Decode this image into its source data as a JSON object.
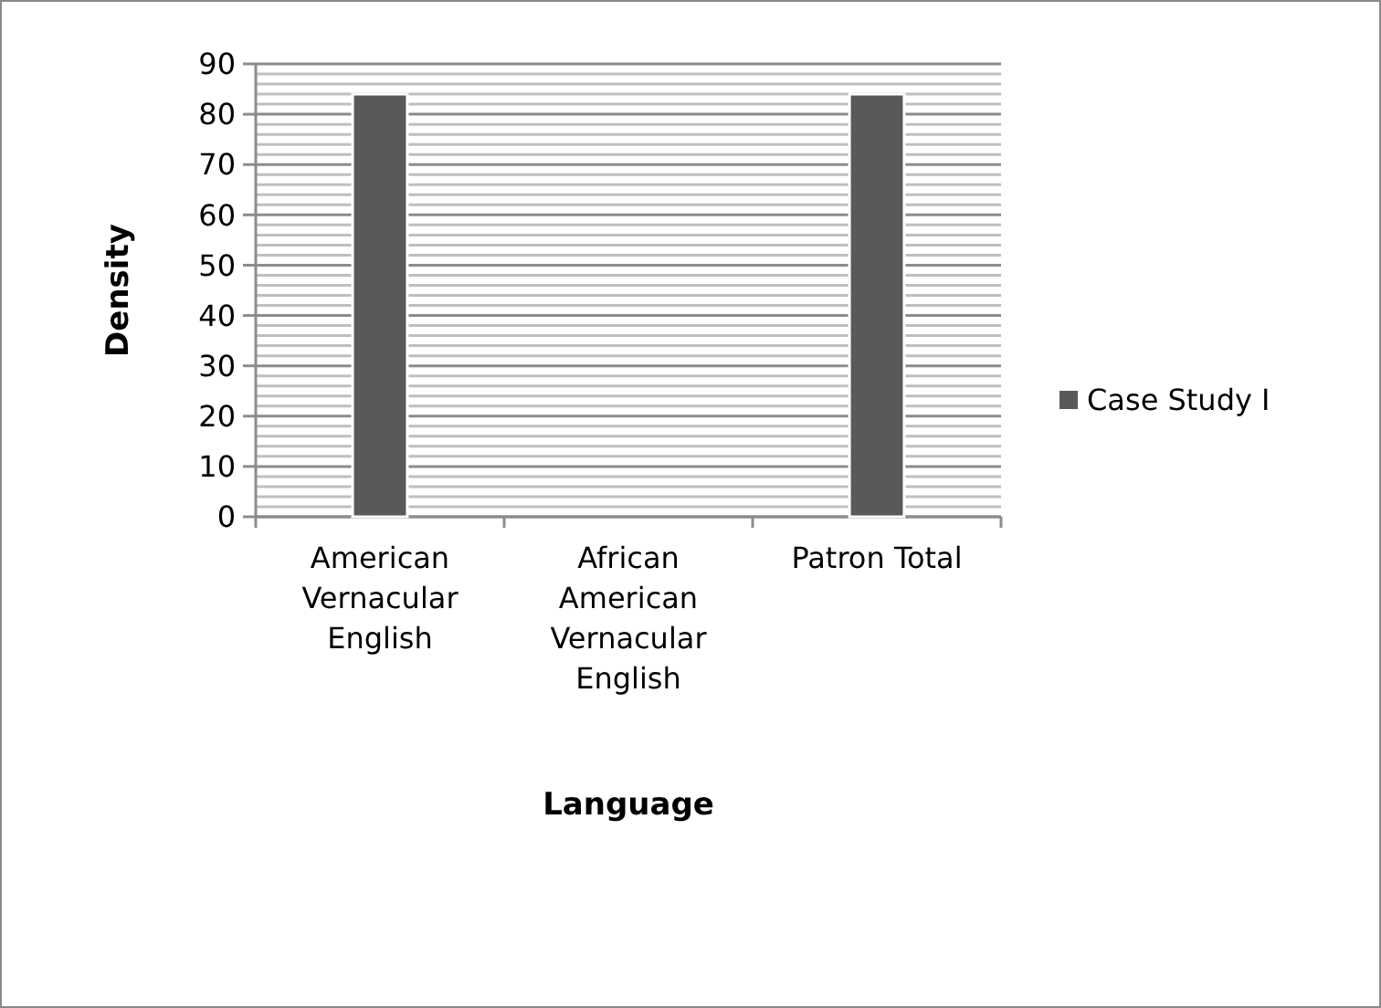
{
  "chart_data": {
    "type": "bar",
    "xlabel": "Language",
    "ylabel": "Density",
    "categories": [
      "American Vernacular English",
      "African American Vernacular English",
      "Patron Total"
    ],
    "series": [
      {
        "name": "Case Study I",
        "color": "#595959",
        "values": [
          84,
          0,
          84
        ]
      }
    ],
    "ylim": [
      0,
      90
    ],
    "yticks": [
      0,
      10,
      20,
      30,
      40,
      50,
      60,
      70,
      80,
      90
    ],
    "grid": true,
    "legend": "right"
  }
}
